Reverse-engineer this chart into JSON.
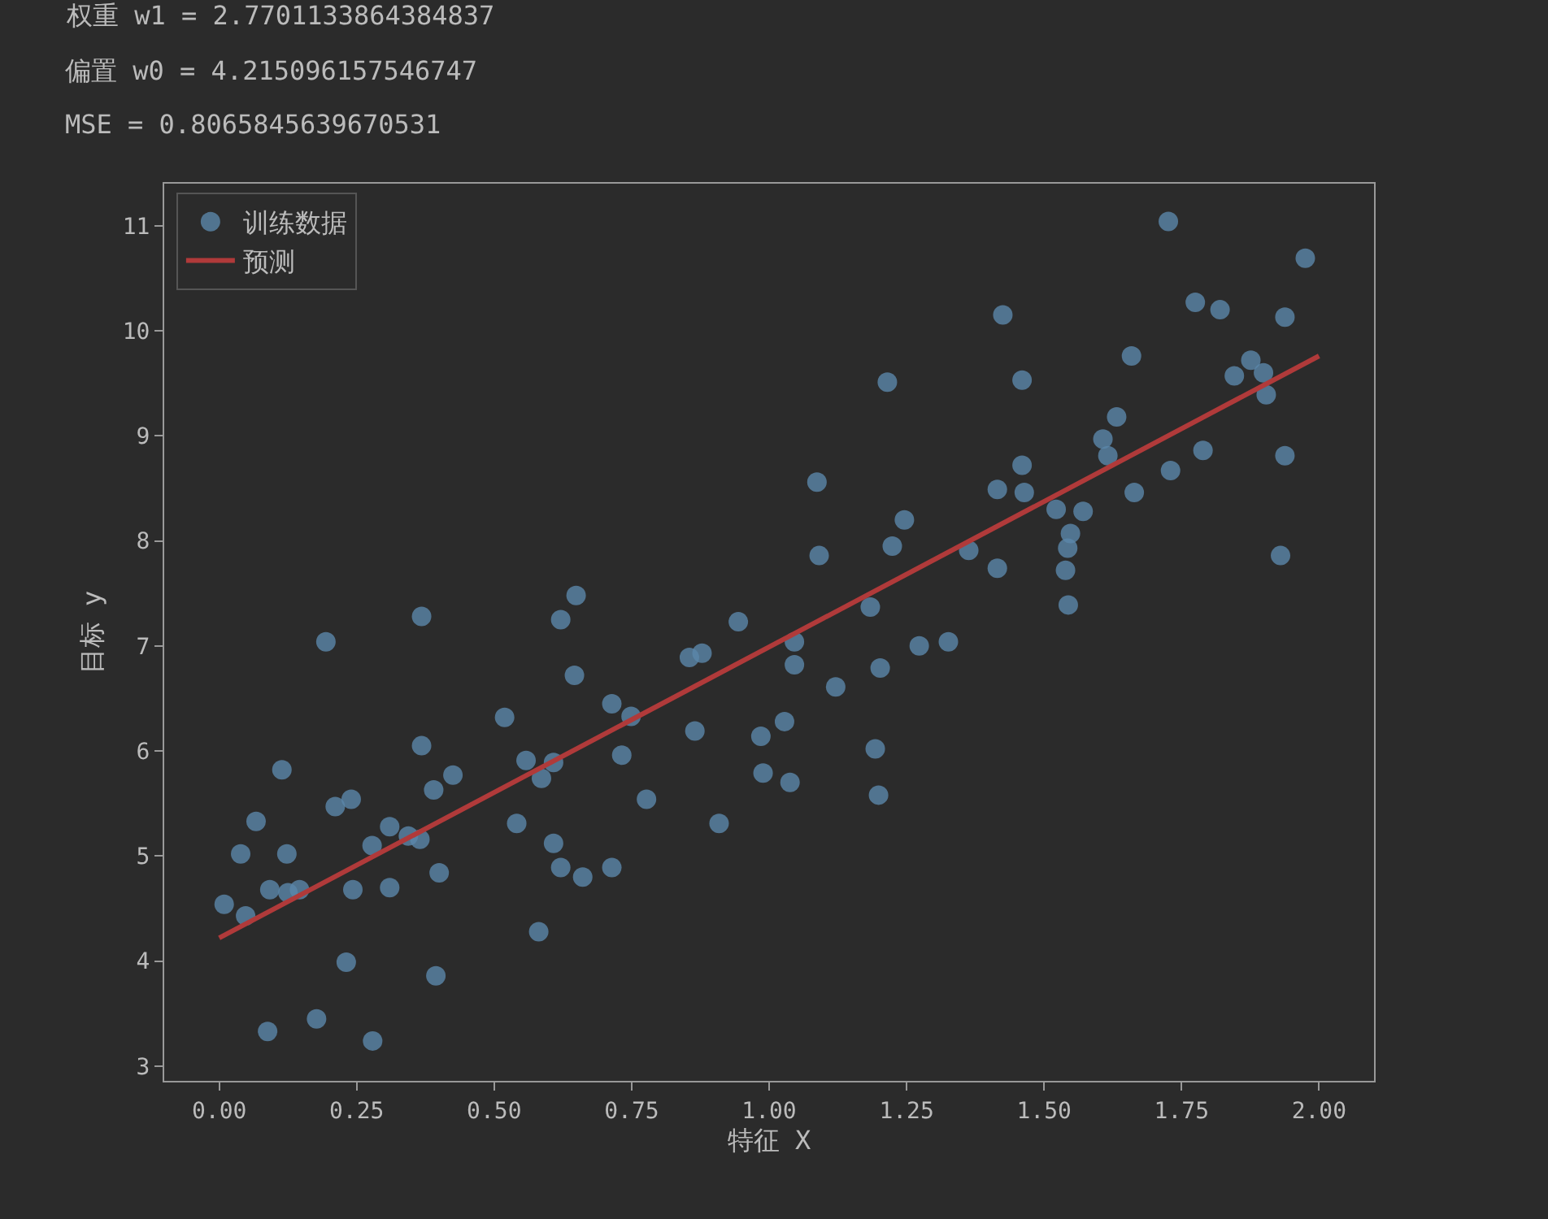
{
  "chart_data": {
    "type": "scatter",
    "xlabel": "特征 X",
    "ylabel": "目标 y",
    "annotations": [
      "权重 w1 = 2.7701133864384837",
      "偏置 w0 = 4.215096157546747",
      "MSE = 0.8065845639670531"
    ],
    "xlim": [
      -0.1,
      2.1
    ],
    "xticks": [
      {
        "value": 0,
        "label": "0.00"
      },
      {
        "value": 0.25,
        "label": "0.25"
      },
      {
        "value": 0.5,
        "label": "0.50"
      },
      {
        "value": 0.75,
        "label": "0.75"
      },
      {
        "value": 1,
        "label": "1.00"
      },
      {
        "value": 1.25,
        "label": "1.25"
      },
      {
        "value": 1.5,
        "label": "1.50"
      },
      {
        "value": 1.75,
        "label": "1.75"
      },
      {
        "value": 2,
        "label": "2.00"
      }
    ],
    "ylim": [
      2.86,
      11.4
    ],
    "yticks": [
      3,
      4,
      5,
      6,
      7,
      8,
      9,
      10,
      11
    ],
    "grid": false,
    "legend": "top left",
    "series": [
      {
        "name": "训练数据",
        "marker": "circle",
        "color": "#5b87aa",
        "x": [
          0.009,
          0.048,
          0.039,
          0.067,
          0.114,
          0.123,
          0.092,
          0.125,
          0.146,
          0.088,
          0.177,
          0.194,
          0.211,
          0.24,
          0.243,
          0.231,
          0.279,
          0.278,
          0.31,
          0.31,
          0.344,
          0.365,
          0.368,
          0.368,
          0.39,
          0.394,
          0.4,
          0.425,
          0.519,
          0.541,
          0.558,
          0.581,
          0.586,
          0.608,
          0.608,
          0.621,
          0.621,
          0.646,
          0.649,
          0.661,
          0.714,
          0.714,
          0.732,
          0.749,
          0.777,
          0.855,
          0.878,
          0.865,
          0.909,
          0.944,
          0.985,
          0.989,
          1.028,
          1.038,
          1.046,
          1.046,
          1.087,
          1.091,
          1.121,
          1.184,
          1.193,
          1.199,
          1.202,
          1.215,
          1.224,
          1.246,
          1.273,
          1.326,
          1.363,
          1.415,
          1.415,
          1.425,
          1.46,
          1.46,
          1.464,
          1.522,
          1.571,
          1.548,
          1.543,
          1.539,
          1.544,
          1.607,
          1.616,
          1.632,
          1.659,
          1.664,
          1.726,
          1.73,
          1.775,
          1.789,
          1.82,
          1.846,
          1.876,
          1.899,
          1.904,
          1.938,
          1.938,
          1.93,
          1.975
        ],
        "values": [
          4.54,
          4.43,
          5.02,
          5.33,
          5.82,
          5.02,
          4.68,
          4.65,
          4.68,
          3.33,
          3.45,
          7.04,
          5.47,
          5.54,
          4.68,
          3.99,
          3.24,
          5.1,
          5.28,
          4.7,
          5.19,
          5.16,
          7.28,
          6.05,
          5.63,
          3.86,
          4.84,
          5.77,
          6.32,
          5.31,
          5.91,
          4.28,
          5.74,
          5.12,
          5.89,
          4.89,
          7.25,
          6.72,
          7.48,
          4.8,
          4.89,
          6.45,
          5.96,
          6.33,
          5.54,
          6.89,
          6.93,
          6.19,
          5.31,
          7.23,
          6.14,
          5.79,
          6.28,
          5.7,
          7.04,
          6.82,
          8.56,
          7.86,
          6.61,
          7.37,
          6.02,
          5.58,
          6.79,
          9.51,
          7.95,
          8.2,
          7.0,
          7.04,
          7.91,
          7.74,
          8.49,
          10.15,
          9.53,
          8.72,
          8.46,
          8.3,
          8.28,
          8.07,
          7.93,
          7.72,
          7.39,
          8.97,
          8.81,
          9.18,
          9.76,
          8.46,
          11.04,
          8.67,
          10.27,
          8.86,
          10.2,
          9.57,
          9.72,
          9.6,
          9.39,
          10.13,
          8.81,
          7.86,
          10.69
        ]
      },
      {
        "name": "预测",
        "type": "line",
        "marker": "none",
        "line_style": "solid",
        "color": "#b03a3a",
        "x": [
          0,
          2
        ],
        "values": [
          4.22,
          9.76
        ]
      }
    ]
  }
}
